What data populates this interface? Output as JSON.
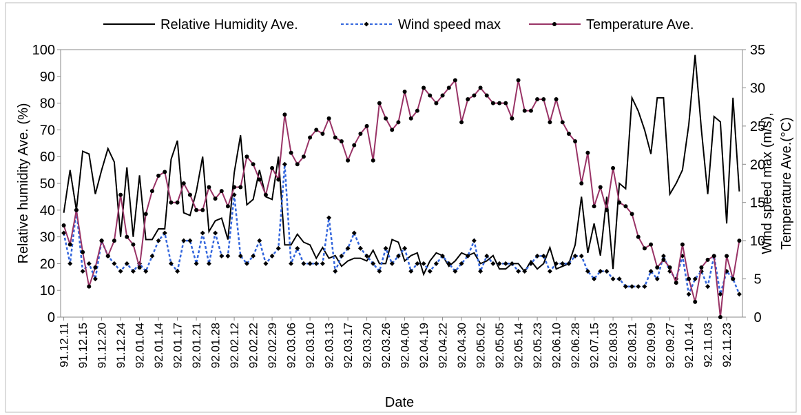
{
  "chart_data": {
    "type": "line",
    "xlabel": "Date",
    "ylabel": "Relative humidity Ave. (%)",
    "y2label": [
      "Wind speed max (m/s),",
      "Temperature Ave.(°C)"
    ],
    "legend": "top",
    "categories": [
      "91.12.11",
      null,
      null,
      "91.12.15",
      null,
      null,
      "91.12.20",
      null,
      null,
      "91.12.24",
      null,
      null,
      "92.01.04",
      null,
      null,
      "92.01.14",
      null,
      null,
      "92.01.17",
      null,
      null,
      "92.01.21",
      null,
      null,
      "92.01.28",
      null,
      null,
      "92.02.12",
      null,
      null,
      "92.02.22",
      null,
      null,
      "92.02.29",
      null,
      null,
      "92.03.06",
      null,
      null,
      "92.03.10",
      null,
      null,
      "92.03.13",
      null,
      null,
      "92.03.17",
      null,
      null,
      "92.03.20",
      null,
      null,
      "92.03.26",
      null,
      null,
      "92.04.06",
      null,
      null,
      "92.04.19",
      null,
      null,
      "92.04.22",
      null,
      null,
      "92.04.30",
      null,
      null,
      "92.05.02",
      null,
      null,
      "92.05.05",
      null,
      null,
      "92.05.14",
      null,
      null,
      "92.05.23",
      null,
      null,
      "92.06.10",
      null,
      null,
      "92.06.28",
      null,
      null,
      "92.07.15",
      null,
      null,
      "92.08.03",
      null,
      null,
      "92.08.21",
      null,
      null,
      "92.09.09",
      null,
      null,
      "92.09.27",
      null,
      null,
      "92.10.14",
      null,
      null,
      "92.11.03",
      null,
      null,
      "92.11.23",
      null,
      null
    ],
    "ylim": [
      0,
      100
    ],
    "yticks": [
      0,
      10,
      20,
      30,
      40,
      50,
      60,
      70,
      80,
      90,
      100
    ],
    "y2lim": [
      0,
      35
    ],
    "y2ticks": [
      0,
      5,
      10,
      15,
      20,
      25,
      30,
      35
    ],
    "series": [
      {
        "name": "Relative Humidity Ave.",
        "color": "#000000",
        "style": "solid",
        "marker": "none",
        "values": [
          39,
          55,
          40,
          62,
          61,
          46,
          55,
          63,
          58,
          30,
          56,
          30,
          53,
          29,
          29,
          33,
          33,
          59,
          66,
          39,
          38,
          47,
          60,
          32,
          36,
          37,
          29,
          54,
          68,
          42,
          44,
          55,
          45,
          44,
          60,
          27,
          27,
          31,
          28,
          27,
          22,
          26,
          22,
          23,
          19,
          21,
          22,
          22,
          21,
          25,
          20,
          20,
          29,
          28,
          21,
          23,
          24,
          16,
          21,
          24,
          23,
          19,
          21,
          24,
          23,
          24,
          20,
          21,
          23,
          18,
          18,
          20,
          20,
          17,
          21,
          18,
          20,
          26,
          18,
          19,
          20,
          27,
          45,
          24,
          35,
          23,
          45,
          18,
          50,
          48,
          82,
          77,
          70,
          61,
          82,
          82,
          46,
          50,
          55,
          72,
          98,
          70,
          46,
          75,
          73,
          35,
          82,
          47
        ]
      },
      {
        "name": "Wind speed max",
        "color": "#3366dd",
        "style": "dashed",
        "marker": "diamond",
        "axis": "y2",
        "values": [
          11,
          7,
          14,
          6,
          7,
          5,
          10,
          8,
          7,
          6,
          7,
          6,
          7,
          6,
          8,
          10,
          11,
          7,
          6,
          10,
          10,
          7,
          11,
          7,
          11,
          8,
          8,
          16,
          8,
          7,
          8,
          10,
          7,
          8,
          9,
          20,
          7,
          9,
          7,
          7,
          7,
          7,
          13,
          6,
          8,
          9,
          11,
          9,
          8,
          7,
          6,
          9,
          7,
          8,
          9,
          6,
          7,
          7,
          6,
          7,
          8,
          7,
          6,
          7,
          8,
          10,
          6,
          8,
          7,
          7,
          7,
          7,
          6,
          6,
          7,
          8,
          8,
          6,
          7,
          7,
          7,
          8,
          8,
          6,
          5,
          6,
          6,
          5,
          5,
          4,
          4,
          4,
          4,
          6,
          5,
          8,
          6,
          5,
          8,
          3,
          5,
          6,
          4,
          8,
          3,
          6,
          5,
          3
        ]
      },
      {
        "name": "Temperature Ave.",
        "color": "#993366",
        "style": "solid",
        "marker": "circle",
        "axis": "y2",
        "values": [
          12,
          9.5,
          14,
          8.5,
          4,
          6.5,
          10,
          8,
          10,
          16,
          10.5,
          9.5,
          6.5,
          13.5,
          16.5,
          18.5,
          19,
          15,
          15,
          17.5,
          16,
          14,
          14,
          17,
          15.5,
          16.5,
          14.5,
          17,
          17,
          21,
          20,
          18,
          16,
          19.5,
          18,
          26.5,
          21.5,
          20,
          21,
          23.5,
          24.5,
          24,
          26,
          23.5,
          23,
          20.5,
          22.5,
          24,
          25,
          20.5,
          28,
          26,
          24.5,
          25.5,
          29.5,
          26,
          27,
          30,
          29,
          28,
          29,
          30,
          31,
          25.5,
          28.5,
          29,
          30,
          29,
          28,
          28,
          28,
          26,
          31,
          27,
          27,
          28.5,
          28.5,
          25.5,
          28.5,
          25.5,
          24,
          23,
          17.5,
          21.5,
          14.5,
          17,
          14,
          19.5,
          15,
          14.5,
          13.5,
          10.5,
          9,
          9.5,
          6.5,
          7.5,
          6.5,
          4.5,
          9.5,
          5,
          2,
          6.5,
          7.5,
          8,
          0,
          8,
          5,
          10
        ]
      }
    ]
  }
}
